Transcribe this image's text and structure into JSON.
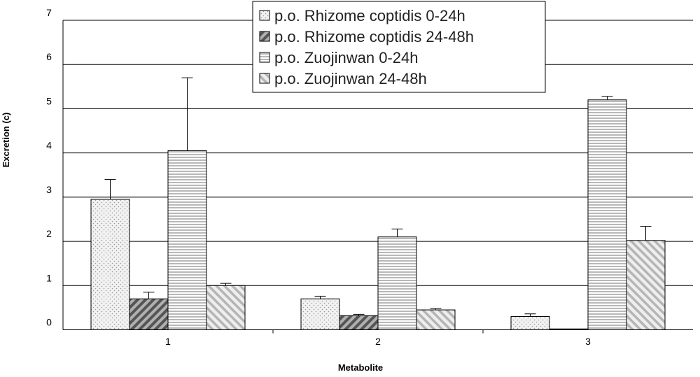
{
  "chart_data": {
    "type": "bar",
    "title": "",
    "xlabel": "Metabolite",
    "ylabel": "Excretion (c)",
    "categories": [
      "1",
      "2",
      "3"
    ],
    "ylim": [
      0,
      7
    ],
    "yticks": [
      "0",
      "1",
      "2",
      "3",
      "4",
      "5",
      "6",
      "7"
    ],
    "grid": true,
    "legend_position": "top-center",
    "error_bars": true,
    "series": [
      {
        "name": "p.o. Rhizome coptidis 0-24h",
        "pattern": "dots",
        "values": [
          2.95,
          0.7,
          0.3
        ],
        "errors": [
          0.45,
          0.06,
          0.06
        ]
      },
      {
        "name": "p.o. Rhizome coptidis 24-48h",
        "pattern": "dark-diagonal",
        "values": [
          0.7,
          0.32,
          0.02
        ],
        "errors": [
          0.15,
          0.03,
          0.0
        ]
      },
      {
        "name": "p.o. Zuojinwan 0-24h",
        "pattern": "horizontal-stripes",
        "values": [
          4.05,
          2.1,
          5.2
        ],
        "errors": [
          1.65,
          0.18,
          0.08
        ]
      },
      {
        "name": "p.o. Zuojinwan 24-48h",
        "pattern": "light-diagonal",
        "values": [
          1.0,
          0.45,
          2.02
        ],
        "errors": [
          0.05,
          0.03,
          0.32
        ]
      }
    ]
  }
}
